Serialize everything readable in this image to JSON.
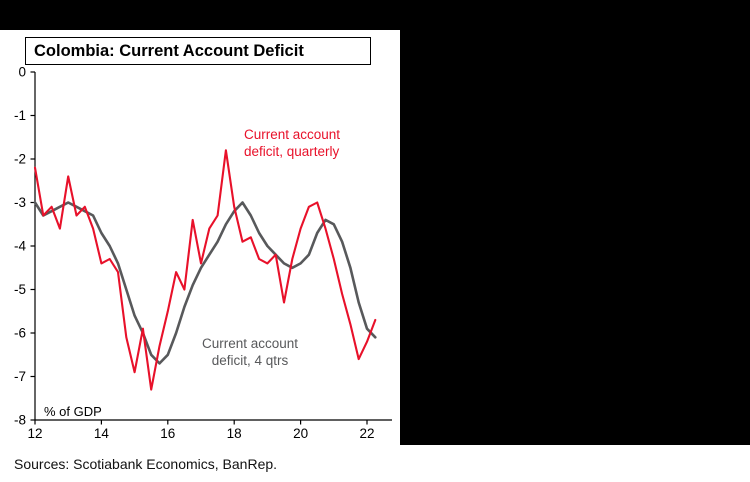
{
  "title": "Colombia: Current Account Deficit",
  "footer": {
    "sources": "Sources: Scotiabank Economics, BanRep."
  },
  "colors": {
    "red": "#e8112a",
    "gray": "#58595b",
    "axis": "#000000",
    "panel_bg": "#ffffff",
    "surround_bg": "#000000"
  },
  "legend": {
    "quarterly": {
      "line1": "Current account",
      "line2": "deficit, quarterly"
    },
    "four_qtrs": {
      "line1": "Current account",
      "line2": "deficit, 4 qtrs"
    }
  },
  "chart_data": {
    "type": "line",
    "title": "Colombia: Current Account Deficit",
    "ylabel": "% of GDP",
    "xlabel": "",
    "ylim": [
      -8,
      0
    ],
    "xlim": [
      12,
      22.5
    ],
    "grid": false,
    "legend_position": "annotations-on-plot",
    "yticks": [
      0,
      -1,
      -2,
      -3,
      -4,
      -5,
      -6,
      -7,
      -8
    ],
    "xticks": [
      12,
      14,
      16,
      18,
      20,
      22
    ],
    "x": [
      12.0,
      12.25,
      12.5,
      12.75,
      13.0,
      13.25,
      13.5,
      13.75,
      14.0,
      14.25,
      14.5,
      14.75,
      15.0,
      15.25,
      15.5,
      15.75,
      16.0,
      16.25,
      16.5,
      16.75,
      17.0,
      17.25,
      17.5,
      17.75,
      18.0,
      18.25,
      18.5,
      18.75,
      19.0,
      19.25,
      19.5,
      19.75,
      20.0,
      20.25,
      20.5,
      20.75,
      21.0,
      21.25,
      21.5,
      21.75,
      22.0,
      22.25
    ],
    "series": [
      {
        "name": "Current account deficit, 4 qtrs",
        "color": "#58595b",
        "width": 2.6,
        "values": [
          -3.0,
          -3.3,
          -3.2,
          -3.1,
          -3.0,
          -3.1,
          -3.2,
          -3.3,
          -3.7,
          -4.0,
          -4.4,
          -5.0,
          -5.6,
          -6.0,
          -6.5,
          -6.7,
          -6.5,
          -6.0,
          -5.4,
          -4.9,
          -4.5,
          -4.2,
          -3.9,
          -3.5,
          -3.2,
          -3.0,
          -3.3,
          -3.7,
          -4.0,
          -4.2,
          -4.4,
          -4.5,
          -4.4,
          -4.2,
          -3.7,
          -3.4,
          -3.5,
          -3.9,
          -4.5,
          -5.3,
          -5.9,
          -6.1
        ]
      },
      {
        "name": "Current account deficit, quarterly",
        "color": "#e8112a",
        "width": 2.1,
        "values": [
          -2.2,
          -3.3,
          -3.1,
          -3.6,
          -2.4,
          -3.3,
          -3.1,
          -3.6,
          -4.4,
          -4.3,
          -4.6,
          -6.1,
          -6.9,
          -5.9,
          -7.3,
          -6.3,
          -5.5,
          -4.6,
          -5.0,
          -3.4,
          -4.4,
          -3.6,
          -3.3,
          -1.8,
          -3.1,
          -3.9,
          -3.8,
          -4.3,
          -4.4,
          -4.2,
          -5.3,
          -4.3,
          -3.6,
          -3.1,
          -3.0,
          -3.6,
          -4.3,
          -5.1,
          -5.8,
          -6.6,
          -6.2,
          -5.7
        ]
      }
    ]
  }
}
